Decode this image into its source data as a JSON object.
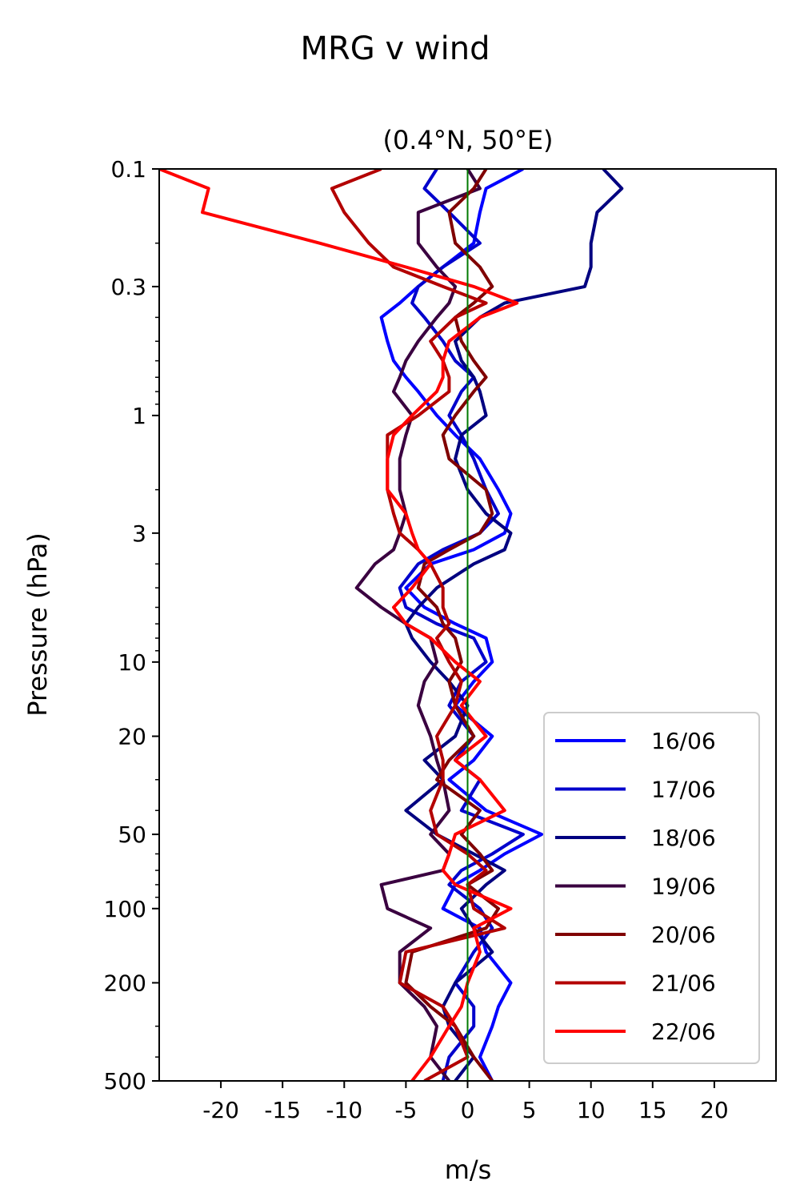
{
  "chart_data": {
    "type": "line",
    "suptitle": "MRG v wind",
    "title": "(0.4°N, 50°E)",
    "xlabel": "m/s",
    "ylabel": "Pressure (hPa)",
    "xlim": [
      -25,
      25
    ],
    "ylim": [
      500,
      0.1
    ],
    "yscale": "log",
    "xticks": [
      -20,
      -15,
      -10,
      -5,
      0,
      5,
      10,
      15,
      20
    ],
    "xtick_labels": [
      "-20",
      "-15",
      "-10",
      "-5",
      "0",
      "5",
      "10",
      "15",
      "20"
    ],
    "yticks": [
      0.1,
      0.3,
      1,
      3,
      10,
      20,
      50,
      100,
      200,
      500
    ],
    "ytick_labels": [
      "0.1",
      "0.3",
      "1",
      "3",
      "10",
      "20",
      "50",
      "100",
      "200",
      "500"
    ],
    "reference_line": {
      "x": 0,
      "color": "#007a00"
    },
    "legend_position": "lower-right",
    "pressure_levels": [
      0.1,
      0.12,
      0.15,
      0.2,
      0.25,
      0.3,
      0.35,
      0.4,
      0.5,
      0.6,
      0.7,
      0.8,
      1,
      1.2,
      1.5,
      2,
      2.5,
      3,
      3.5,
      4,
      5,
      6,
      7,
      8,
      10,
      12,
      15,
      20,
      25,
      30,
      40,
      50,
      60,
      70,
      80,
      100,
      120,
      150,
      200,
      250,
      300,
      400,
      500
    ],
    "series": [
      {
        "name": "16/06",
        "color": "#0000ff",
        "values": [
          4.5,
          1.5,
          1,
          0.5,
          -2,
          -4,
          -5.5,
          -7,
          -6.5,
          -6,
          -5,
          -4,
          -2.5,
          -1,
          1,
          2.5,
          3.5,
          3,
          0.5,
          -3,
          -5,
          -3.5,
          -1,
          1.5,
          2,
          0.5,
          -1,
          2,
          0.5,
          -1.5,
          1.5,
          6,
          3,
          1,
          -1,
          -2,
          1,
          1.5,
          3.5,
          2.5,
          2,
          1,
          2
        ]
      },
      {
        "name": "17/06",
        "color": "#0000cc",
        "values": [
          -2.5,
          -3.5,
          -1.5,
          1,
          -2,
          -4,
          -4.5,
          -3.5,
          -2,
          -1,
          0.5,
          -0.5,
          -1.5,
          -0.5,
          0.5,
          1.5,
          2.5,
          1,
          -2,
          -4,
          -5.5,
          -5,
          -2.5,
          0.5,
          1.5,
          -0.5,
          -1.5,
          0.5,
          -1,
          1,
          -0.5,
          4.5,
          2,
          -0.5,
          -1.5,
          1,
          2,
          0.5,
          -1,
          0.5,
          0.5,
          -1.5,
          -2
        ]
      },
      {
        "name": "18/06",
        "color": "#000080",
        "values": [
          11,
          12.5,
          10.5,
          10,
          10,
          9.5,
          3,
          1,
          -1,
          -0.5,
          0.5,
          1,
          1.5,
          -0.5,
          -1,
          0,
          1.5,
          3.5,
          3,
          0.5,
          -2.5,
          -4,
          -5,
          -4.5,
          -3,
          -1.5,
          0,
          -1,
          -3.5,
          -2,
          -5,
          -2.5,
          0.5,
          3,
          1.5,
          -0.5,
          0.5,
          2,
          -1,
          -2,
          -1.5,
          0.5,
          -1
        ]
      },
      {
        "name": "19/06",
        "color": "#3a0040",
        "values": [
          0,
          1,
          -4,
          -4,
          -2.5,
          -1,
          -1.5,
          -2.5,
          -4,
          -5,
          -5.5,
          -6,
          -4.5,
          -5,
          -5.5,
          -5.5,
          -5,
          -5.5,
          -6,
          -7.5,
          -9,
          -7,
          -5,
          -3,
          -2.5,
          -3.5,
          -4,
          -3,
          -2.5,
          -2,
          -1.5,
          -3,
          -1.5,
          -2,
          -7,
          -6.5,
          -3,
          -5.5,
          -5.5,
          -3.5,
          -2.5,
          -3,
          -1.5
        ]
      },
      {
        "name": "20/06",
        "color": "#800000",
        "values": [
          1.5,
          0.5,
          -1.5,
          -1,
          1,
          2,
          0.5,
          -1,
          -0.5,
          0.5,
          1.5,
          0.5,
          -1,
          -2,
          -1.5,
          1.5,
          2,
          1,
          -1.5,
          -3.5,
          -4,
          -2.5,
          -2,
          -1,
          -0.5,
          -1.5,
          -1,
          0.5,
          -1.5,
          -2.5,
          1,
          -0.5,
          1,
          2,
          0,
          2.5,
          1.5,
          -4.5,
          -5,
          -3,
          -1,
          0.5,
          2
        ]
      },
      {
        "name": "21/06",
        "color": "#b30000",
        "values": [
          -7,
          -11,
          -10,
          -8,
          -6,
          -2,
          1.5,
          -1,
          -3,
          -2,
          -1.5,
          -1.5,
          -4,
          -6.5,
          -6.5,
          -6.5,
          -6,
          -5.5,
          -4,
          -3,
          -2,
          -2,
          -1.5,
          -2.5,
          -1.5,
          -0.5,
          -1,
          -2.5,
          -2,
          -2,
          -3,
          -2.5,
          0,
          1.5,
          0,
          0.5,
          3,
          -5,
          -5.5,
          -2,
          -1,
          0,
          -3.5
        ]
      },
      {
        "name": "22/06",
        "color": "#ff0000",
        "values": [
          -25,
          -21,
          -21.5,
          -12,
          -5,
          0.5,
          4,
          1,
          -1.5,
          -2,
          -2,
          -2.5,
          -4.5,
          -6,
          -6.5,
          -6.5,
          -5,
          -4.5,
          -4,
          -3,
          -4.5,
          -6,
          -5,
          -3,
          -1,
          1,
          -0.5,
          1.5,
          -1,
          1,
          3,
          -1,
          -1.5,
          -2,
          -1,
          3.5,
          0.5,
          1,
          0,
          -0.5,
          -1.5,
          -3,
          -4.5
        ]
      }
    ]
  }
}
